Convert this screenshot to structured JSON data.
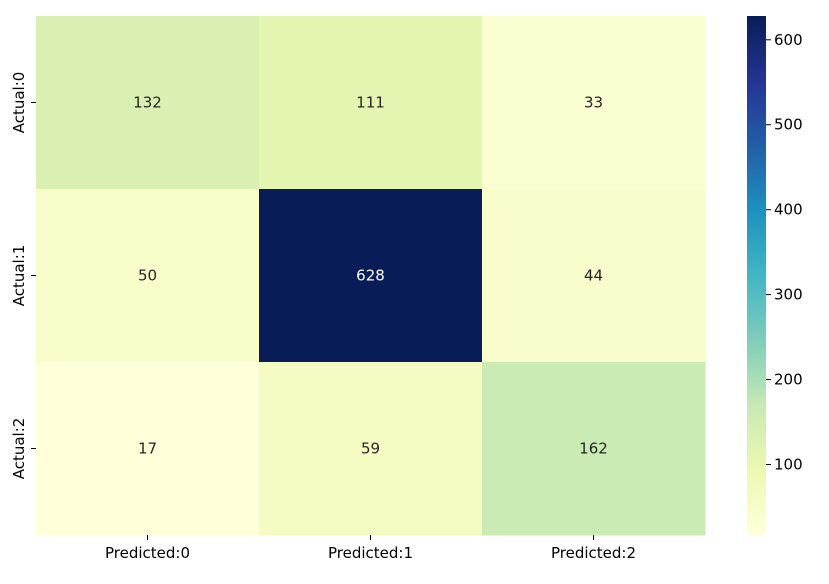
{
  "chart_data": {
    "type": "heatmap",
    "title": "",
    "xlabel": "",
    "ylabel": "",
    "x_categories": [
      "Predicted:0",
      "Predicted:1",
      "Predicted:2"
    ],
    "y_categories": [
      "Actual:0",
      "Actual:1",
      "Actual:2"
    ],
    "values": [
      [
        132,
        111,
        33
      ],
      [
        50,
        628,
        44
      ],
      [
        17,
        59,
        162
      ]
    ],
    "colorscale": "YlGnBu",
    "value_range": [
      17,
      628
    ],
    "colorbar_ticks": [
      100,
      200,
      300,
      400,
      500,
      600
    ],
    "colorbar_tick_labels": [
      "100",
      "200",
      "300",
      "400",
      "500",
      "600"
    ],
    "annotate_cells": true,
    "grid": false,
    "legend": "colorbar-right"
  }
}
